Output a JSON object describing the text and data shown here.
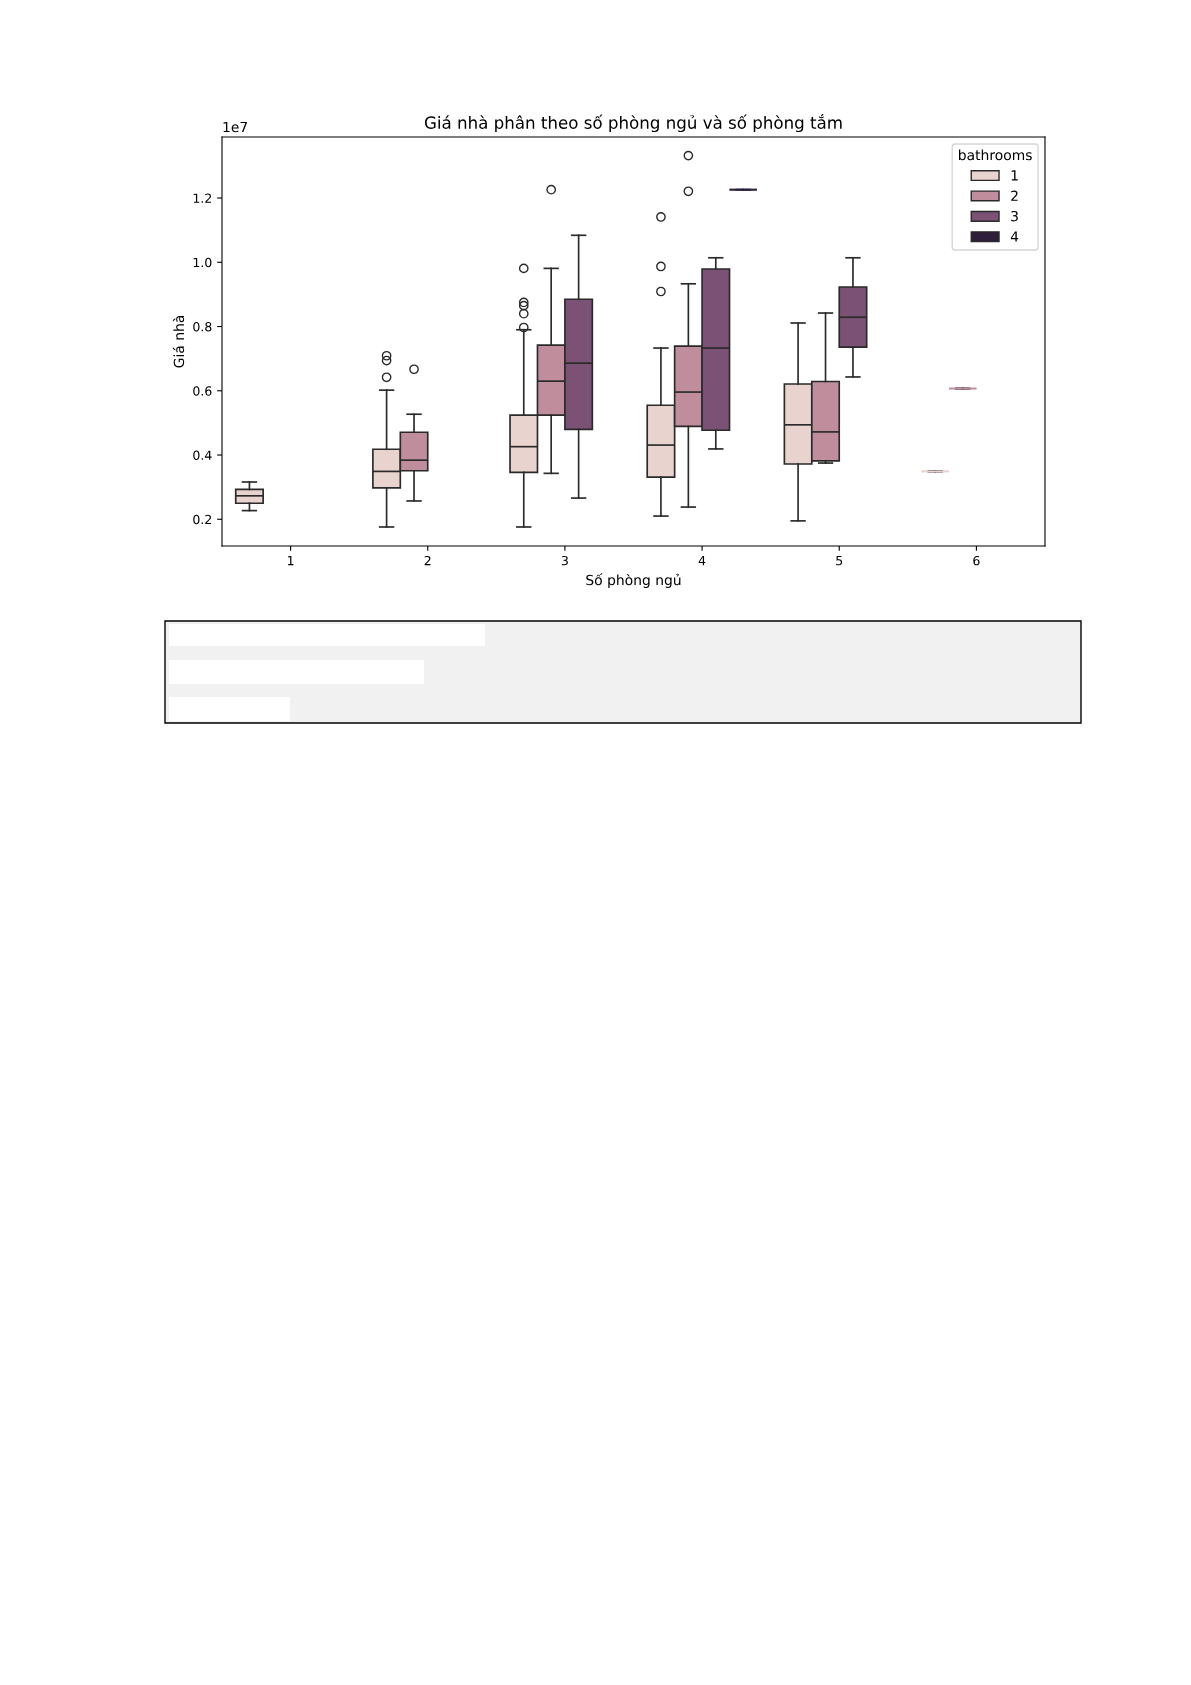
{
  "chart_data": {
    "type": "box",
    "title": "Giá nhà phân theo số phòng ngủ và số phòng tắm",
    "xlabel": "Số phòng ngủ",
    "ylabel": "Giá nhà",
    "legend_title": "bathrooms",
    "legend": "top right",
    "grid": false,
    "categories": [
      "1",
      "2",
      "3",
      "4",
      "5",
      "6"
    ],
    "ylim": [
      0.117,
      1.39
    ],
    "yticks": [
      0.2,
      0.4,
      0.6,
      0.8,
      {
        "value": 1.0,
        "label": "1.0"
      },
      1.2
    ],
    "annotations": [
      "1e7"
    ],
    "series": [
      {
        "name": "1",
        "color": "#e8d3cf",
        "boxes": [
          {
            "low": 0.227,
            "q1": 0.25,
            "median": 0.273,
            "q3": 0.293,
            "high": 0.316
          },
          {
            "low": 0.176,
            "q1": 0.298,
            "median": 0.349,
            "q3": 0.418,
            "high": 0.602,
            "outliers": [
              0.642,
              0.694,
              0.709
            ]
          },
          {
            "low": 0.176,
            "q1": 0.346,
            "median": 0.426,
            "q3": 0.524,
            "high": 0.79,
            "outliers": [
              0.797,
              0.84,
              0.865,
              0.875,
              0.981
            ]
          },
          {
            "low": 0.21,
            "q1": 0.331,
            "median": 0.431,
            "q3": 0.555,
            "high": 0.733,
            "outliers": [
              0.909,
              0.987,
              1.141
            ]
          },
          {
            "low": 0.195,
            "q1": 0.372,
            "median": 0.494,
            "q3": 0.621,
            "high": 0.811
          },
          {
            "low": 0.349,
            "q1": 0.349,
            "median": 0.349,
            "q3": 0.349,
            "high": 0.349
          }
        ]
      },
      {
        "name": "2",
        "color": "#c08d9d",
        "boxes": [
          null,
          {
            "low": 0.257,
            "q1": 0.351,
            "median": 0.384,
            "q3": 0.471,
            "high": 0.527,
            "outliers": [
              0.667
            ]
          },
          {
            "low": 0.343,
            "q1": 0.524,
            "median": 0.63,
            "q3": 0.742,
            "high": 0.981,
            "outliers": [
              1.226
            ]
          },
          {
            "low": 0.238,
            "q1": 0.489,
            "median": 0.596,
            "q3": 0.739,
            "high": 0.933,
            "outliers": [
              1.221,
              1.332
            ]
          },
          {
            "low": 0.375,
            "q1": 0.382,
            "median": 0.472,
            "q3": 0.629,
            "high": 0.842
          },
          {
            "low": 0.607,
            "q1": 0.607,
            "median": 0.607,
            "q3": 0.607,
            "high": 0.607
          }
        ]
      },
      {
        "name": "3",
        "color": "#7b5275",
        "boxes": [
          null,
          null,
          {
            "low": 0.266,
            "q1": 0.48,
            "median": 0.686,
            "q3": 0.885,
            "high": 1.084
          },
          {
            "low": 0.419,
            "q1": 0.477,
            "median": 0.733,
            "q3": 0.979,
            "high": 1.014
          },
          {
            "low": 0.643,
            "q1": 0.736,
            "median": 0.829,
            "q3": 0.923,
            "high": 1.014
          },
          null
        ]
      },
      {
        "name": "4",
        "color": "#2e1e3b",
        "boxes": [
          null,
          null,
          null,
          {
            "low": 1.226,
            "q1": 1.226,
            "median": 1.226,
            "q3": 1.226,
            "high": 1.226
          },
          null,
          null
        ]
      }
    ]
  }
}
